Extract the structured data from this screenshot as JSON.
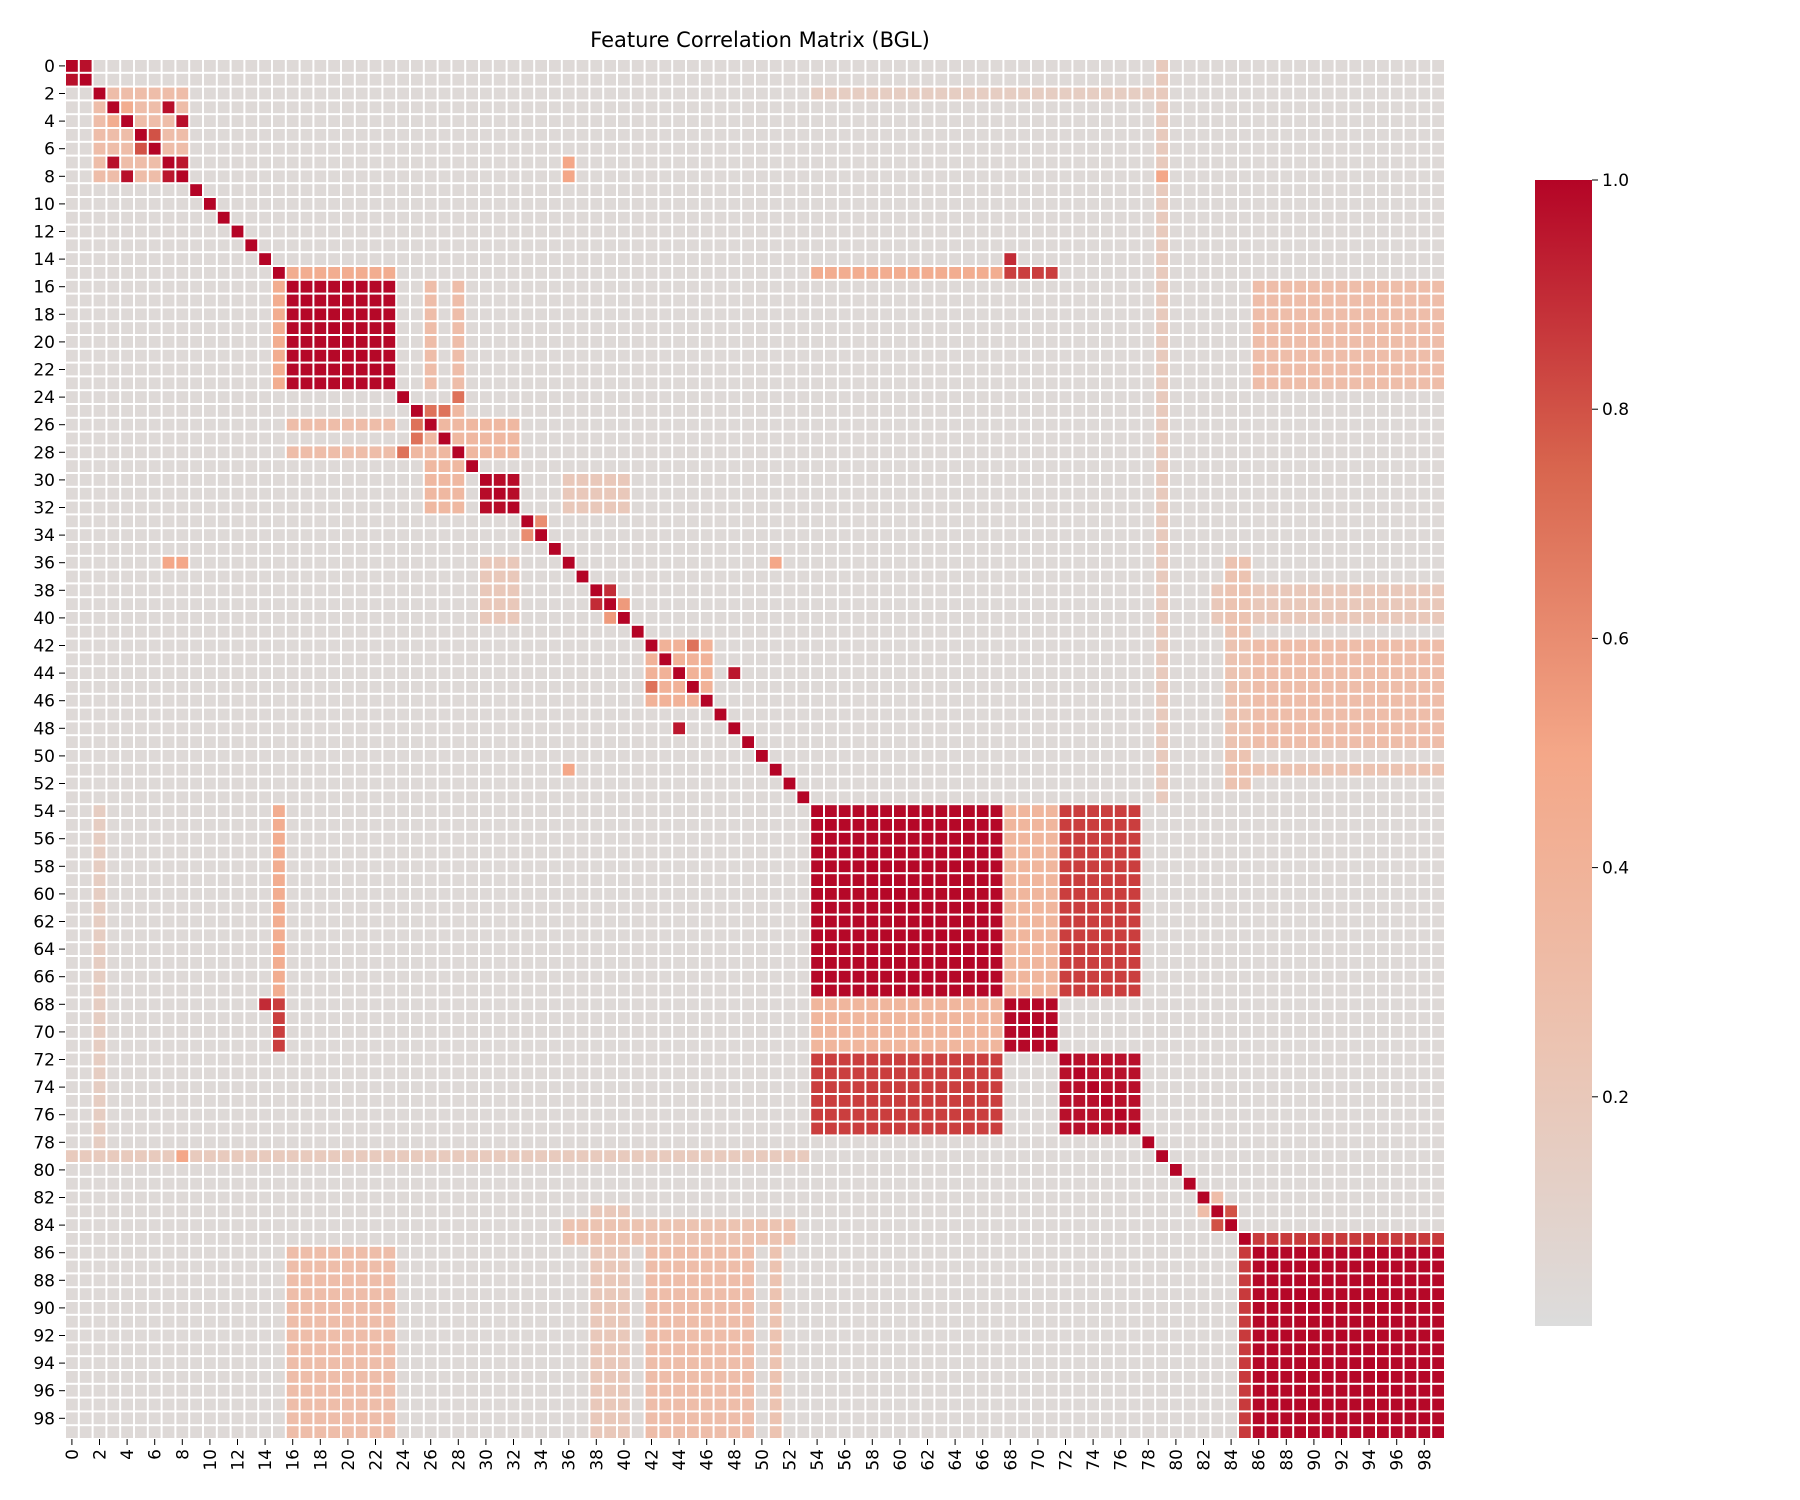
{
  "chart_data": {
    "type": "heatmap",
    "title": "Feature Correlation Matrix (BGL)",
    "xlabel": "",
    "ylabel": "",
    "n": 100,
    "x_tick_labels": [
      "0",
      "2",
      "4",
      "6",
      "8",
      "10",
      "12",
      "14",
      "16",
      "18",
      "20",
      "22",
      "24",
      "26",
      "28",
      "30",
      "32",
      "34",
      "36",
      "38",
      "40",
      "42",
      "44",
      "46",
      "48",
      "50",
      "52",
      "54",
      "56",
      "58",
      "60",
      "62",
      "64",
      "66",
      "68",
      "70",
      "72",
      "74",
      "76",
      "78",
      "80",
      "82",
      "84",
      "86",
      "88",
      "90",
      "92",
      "94",
      "96",
      "98"
    ],
    "y_tick_labels": [
      "0",
      "2",
      "4",
      "6",
      "8",
      "10",
      "12",
      "14",
      "16",
      "18",
      "20",
      "22",
      "24",
      "26",
      "28",
      "30",
      "32",
      "34",
      "36",
      "38",
      "40",
      "42",
      "44",
      "46",
      "48",
      "50",
      "52",
      "54",
      "56",
      "58",
      "60",
      "62",
      "64",
      "66",
      "68",
      "70",
      "72",
      "74",
      "76",
      "78",
      "80",
      "82",
      "84",
      "86",
      "88",
      "90",
      "92",
      "94",
      "96",
      "98"
    ],
    "colorbar": {
      "colormap": "coolwarm (upper half)",
      "vmin": 0.0,
      "vmax": 1.0,
      "ticks": [
        0.2,
        0.4,
        0.6,
        0.8,
        1.0
      ],
      "tick_labels": [
        "0.2",
        "0.4",
        "0.6",
        "0.8",
        "1.0"
      ],
      "low_color": "#dcdcdc",
      "mid_color": "#f4a788",
      "high_color": "#b40426"
    },
    "diagonal_value": 1.0,
    "baseline_value": 0.03,
    "blocks": [
      {
        "rows": [
          0,
          1
        ],
        "cols": [
          0,
          1
        ],
        "value": 0.97
      },
      {
        "rows": [
          16,
          23
        ],
        "cols": [
          16,
          23
        ],
        "value": 0.99
      },
      {
        "rows": [
          30,
          32
        ],
        "cols": [
          30,
          32
        ],
        "value": 0.98
      },
      {
        "rows": [
          38,
          39
        ],
        "cols": [
          38,
          39
        ],
        "value": 0.9
      },
      {
        "rows": [
          42,
          43
        ],
        "cols": [
          42,
          43
        ],
        "value": 0.99
      },
      {
        "rows": [
          54,
          67
        ],
        "cols": [
          54,
          67
        ],
        "value": 0.99
      },
      {
        "rows": [
          68,
          71
        ],
        "cols": [
          68,
          71
        ],
        "value": 0.99
      },
      {
        "rows": [
          72,
          77
        ],
        "cols": [
          72,
          77
        ],
        "value": 0.97
      },
      {
        "rows": [
          54,
          67
        ],
        "cols": [
          72,
          77
        ],
        "value": 0.85
      },
      {
        "rows": [
          54,
          67
        ],
        "cols": [
          68,
          71
        ],
        "value": 0.37
      },
      {
        "rows": [
          86,
          99
        ],
        "cols": [
          86,
          99
        ],
        "value": 0.99
      },
      {
        "rows": [
          85,
          85
        ],
        "cols": [
          86,
          99
        ],
        "value": 0.86
      },
      {
        "rows": [
          16,
          23
        ],
        "cols": [
          86,
          99
        ],
        "value": 0.3
      },
      {
        "rows": [
          42,
          45
        ],
        "cols": [
          86,
          99
        ],
        "value": 0.3
      },
      {
        "rows": [
          49,
          49
        ],
        "cols": [
          86,
          99
        ],
        "value": 0.62
      },
      {
        "rows": [
          51,
          51
        ],
        "cols": [
          84,
          99
        ],
        "value": 0.25
      },
      {
        "rows": [
          38,
          40
        ],
        "cols": [
          83,
          99
        ],
        "value": 0.2
      },
      {
        "rows": [
          15,
          15
        ],
        "cols": [
          54,
          67
        ],
        "value": 0.45
      },
      {
        "rows": [
          15,
          15
        ],
        "cols": [
          68,
          71
        ],
        "value": 0.85
      },
      {
        "rows": [
          15,
          15
        ],
        "cols": [
          16,
          23
        ],
        "value": 0.45
      },
      {
        "rows": [
          16,
          23
        ],
        "cols": [
          26,
          26
        ],
        "value": 0.3
      },
      {
        "rows": [
          16,
          23
        ],
        "cols": [
          28,
          28
        ],
        "value": 0.3
      },
      {
        "rows": [
          25,
          32
        ],
        "cols": [
          26,
          28
        ],
        "value": 0.35
      },
      {
        "rows": [
          30,
          32
        ],
        "cols": [
          36,
          40
        ],
        "value": 0.2
      },
      {
        "rows": [
          2,
          8
        ],
        "cols": [
          2,
          8
        ],
        "value": 0.3
      },
      {
        "rows": [
          42,
          46
        ],
        "cols": [
          42,
          46
        ],
        "value": 0.4
      },
      {
        "rows": [
          55,
          78
        ],
        "cols": [
          2,
          2
        ],
        "value": 0.18
      },
      {
        "rows": [
          2,
          2
        ],
        "cols": [
          54,
          78
        ],
        "value": 0.15
      },
      {
        "rows": [
          79,
          79
        ],
        "cols": [
          0,
          53
        ],
        "value": 0.18
      },
      {
        "rows": [
          84,
          85
        ],
        "cols": [
          36,
          52
        ],
        "value": 0.25
      },
      {
        "rows": [
          86,
          99
        ],
        "cols": [
          42,
          49
        ],
        "value": 0.3
      }
    ],
    "points": [
      {
        "row": 4,
        "col": 8,
        "value": 0.97
      },
      {
        "row": 7,
        "col": 3,
        "value": 0.97
      },
      {
        "row": 8,
        "col": 7,
        "value": 0.95
      },
      {
        "row": 5,
        "col": 6,
        "value": 0.8
      },
      {
        "row": 6,
        "col": 5,
        "value": 0.8
      },
      {
        "row": 3,
        "col": 4,
        "value": 0.45
      },
      {
        "row": 8,
        "col": 36,
        "value": 0.5
      },
      {
        "row": 36,
        "col": 7,
        "value": 0.5
      },
      {
        "row": 14,
        "col": 68,
        "value": 0.9
      },
      {
        "row": 25,
        "col": 27,
        "value": 0.7
      },
      {
        "row": 26,
        "col": 25,
        "value": 0.7
      },
      {
        "row": 28,
        "col": 24,
        "value": 0.7
      },
      {
        "row": 24,
        "col": 28,
        "value": 0.7
      },
      {
        "row": 33,
        "col": 34,
        "value": 0.6
      },
      {
        "row": 34,
        "col": 33,
        "value": 0.6
      },
      {
        "row": 40,
        "col": 39,
        "value": 0.55
      },
      {
        "row": 44,
        "col": 48,
        "value": 0.95
      },
      {
        "row": 48,
        "col": 44,
        "value": 0.95
      },
      {
        "row": 42,
        "col": 45,
        "value": 0.7
      },
      {
        "row": 45,
        "col": 42,
        "value": 0.7
      },
      {
        "row": 83,
        "col": 84,
        "value": 0.8
      },
      {
        "row": 84,
        "col": 83,
        "value": 0.8
      },
      {
        "row": 82,
        "col": 83,
        "value": 0.3
      },
      {
        "row": 36,
        "col": 51,
        "value": 0.5
      },
      {
        "row": 8,
        "col": 79,
        "value": 0.5
      },
      {
        "row": 79,
        "col": 8,
        "value": 0.5
      }
    ]
  }
}
